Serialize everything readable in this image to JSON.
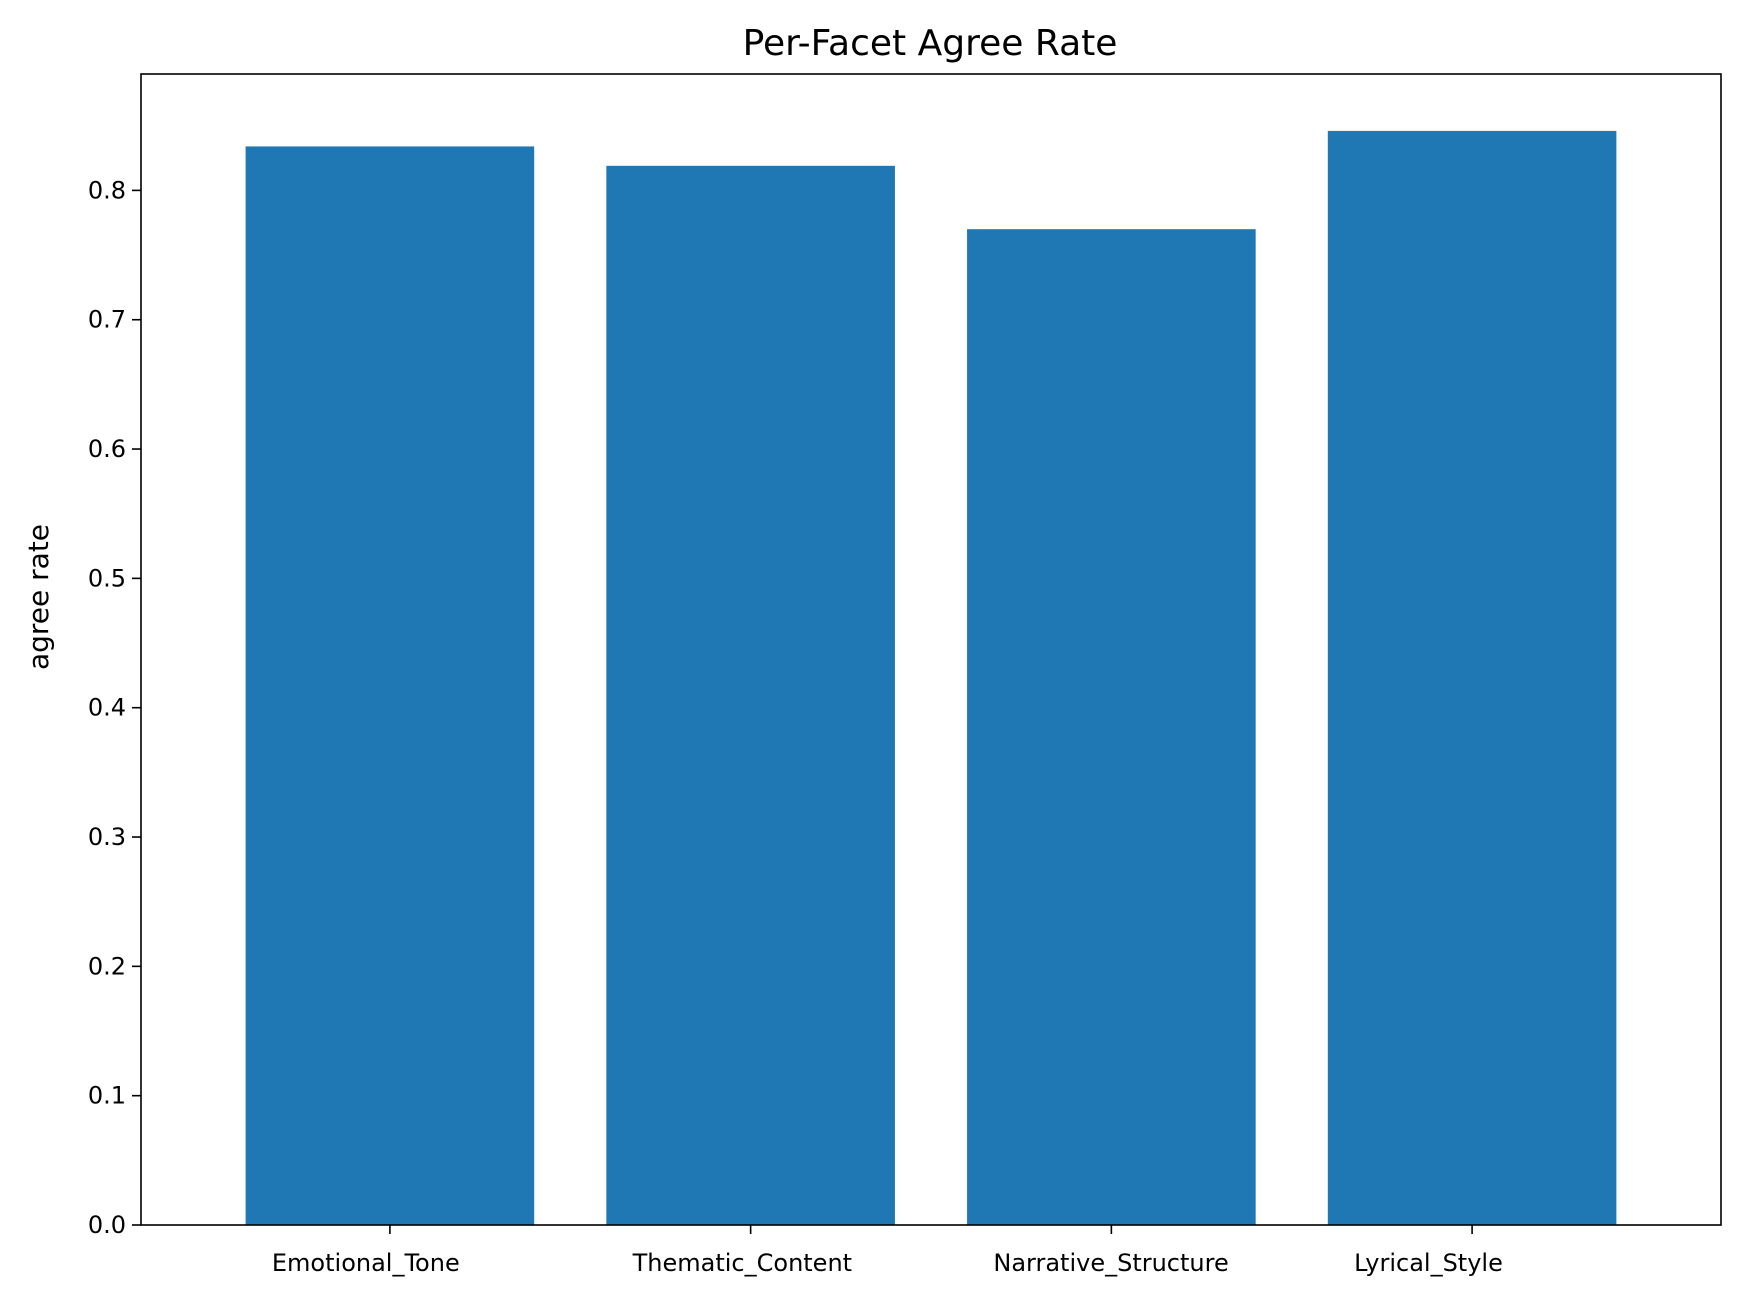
{
  "chart_data": {
    "type": "bar",
    "title": "Per-Facet Agree Rate",
    "xlabel": "",
    "ylabel": "agree rate",
    "categories": [
      "Emotional_Tone",
      "Thematic_Content",
      "Narrative_Structure",
      "Lyrical_Style"
    ],
    "values": [
      0.834,
      0.819,
      0.77,
      0.846
    ],
    "ylim": [
      0,
      0.89
    ],
    "yticks": [
      0.0,
      0.1,
      0.2,
      0.3,
      0.4,
      0.5,
      0.6,
      0.7,
      0.8
    ],
    "ytick_labels": [
      "0.0",
      "0.1",
      "0.2",
      "0.3",
      "0.4",
      "0.5",
      "0.6",
      "0.7",
      "0.8"
    ],
    "bar_color": "#1f77b4",
    "grid": false,
    "legend": "none"
  }
}
